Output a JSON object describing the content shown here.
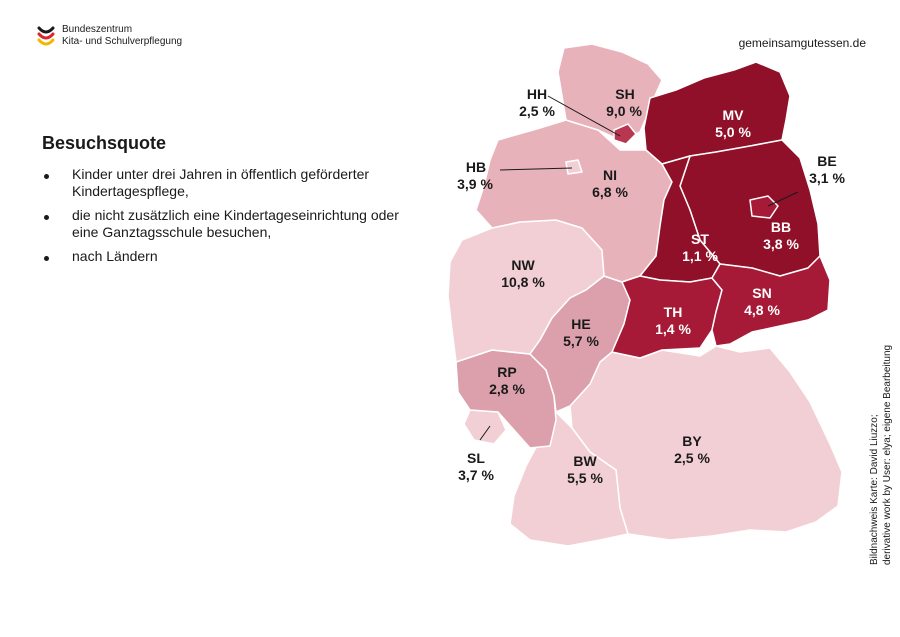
{
  "header": {
    "logo_line1": "Bundeszentrum",
    "logo_line2": "Kita- und Schulverpflegung",
    "website": "gemeinsamgutessen.de"
  },
  "title": "Besuchsquote",
  "bullets": [
    "Kinder unter drei Jahren in öffentlich geförderter Kindertagespflege,",
    "die nicht zusätzlich eine Kindertageseinrichtung oder eine Ganztagsschule besuchen,",
    "nach Ländern"
  ],
  "credit": {
    "line1": "Bildnachweis Karte: David Liuzzo;",
    "line2": "derivative work by User: elya; eigene Bearbeitung"
  },
  "colors": {
    "lightest": "#f2cfd4",
    "light": "#e8b2bb",
    "medium": "#dca0ac",
    "dark": "#a61a37",
    "darkest": "#8f1028"
  },
  "states": [
    {
      "code": "SH",
      "value": "9,0 %"
    },
    {
      "code": "HH",
      "value": "2,5 %"
    },
    {
      "code": "HB",
      "value": "3,9 %"
    },
    {
      "code": "NI",
      "value": "6,8 %"
    },
    {
      "code": "MV",
      "value": "5,0 %"
    },
    {
      "code": "BE",
      "value": "3,1 %"
    },
    {
      "code": "BB",
      "value": "3,8 %"
    },
    {
      "code": "ST",
      "value": "1,1 %"
    },
    {
      "code": "NW",
      "value": "10,8 %"
    },
    {
      "code": "HE",
      "value": "5,7 %"
    },
    {
      "code": "TH",
      "value": "1,4 %"
    },
    {
      "code": "SN",
      "value": "4,8 %"
    },
    {
      "code": "RP",
      "value": "2,8 %"
    },
    {
      "code": "SL",
      "value": "3,7 %"
    },
    {
      "code": "BW",
      "value": "5,5 %"
    },
    {
      "code": "BY",
      "value": "2,5 %"
    }
  ]
}
